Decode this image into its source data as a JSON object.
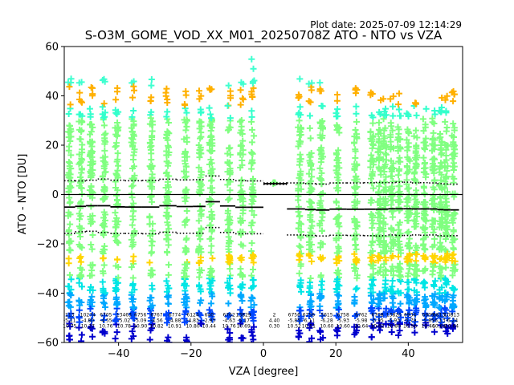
{
  "header": {
    "plot_date": "Plot date: 2025-07-09 12:14:29",
    "title": "S-O3M_GOME_VOD_XX_M01_20250708Z ATO - NTO vs VZA"
  },
  "chart_data": {
    "type": "scatter",
    "title": "S-O3M_GOME_VOD_XX_M01_20250708Z ATO - NTO vs VZA",
    "xlabel": "VZA [degree]",
    "ylabel": "ATO - NTO [DU]",
    "xlim": [
      -55,
      55
    ],
    "ylim": [
      -60,
      60
    ],
    "xticks": [
      -40,
      -20,
      0,
      20,
      40
    ],
    "yticks": [
      -60,
      -40,
      -20,
      0,
      20,
      40,
      60
    ],
    "grid": false,
    "zero_line": 0,
    "point_columns": {
      "x": [
        -53.5,
        -50.5,
        -47.5,
        -44,
        -40.5,
        -36,
        -31,
        -26.5,
        -21.5,
        -17.5,
        -14.5,
        -9.5,
        -6,
        -3,
        3,
        10,
        13,
        16,
        20.5,
        25.5,
        30,
        32,
        33.5,
        35.5,
        37.5,
        40,
        42,
        44.5,
        47,
        49,
        50.5,
        52.5
      ],
      "band_top": [
        33,
        33,
        32,
        33,
        33,
        33,
        33,
        33,
        32,
        31,
        31,
        32,
        32,
        42,
        5,
        33,
        32,
        32,
        30,
        30,
        28,
        26,
        27,
        26,
        27,
        25,
        25,
        22,
        23,
        26,
        26,
        28
      ],
      "band_bottom": [
        -50,
        -50,
        -49,
        -48,
        -49,
        -49,
        -50,
        -50,
        -50,
        -44,
        -42,
        -50,
        -50,
        -52,
        4,
        -50,
        -50,
        -49,
        -48,
        -49,
        -48,
        -47,
        -47,
        -47,
        -48,
        -47,
        -47,
        -47,
        -46,
        -47,
        -47,
        -48
      ]
    },
    "series": [
      {
        "name": "mean",
        "x": [
          -53.5,
          -50.5,
          -47.5,
          -44,
          -40.5,
          -36,
          -31,
          -26.5,
          -21.5,
          -17.5,
          -14.5,
          -9.5,
          -6,
          -3,
          3,
          10,
          13,
          16,
          20.5,
          25.5,
          30,
          32,
          33.5,
          35.5,
          37.5,
          40,
          42,
          44.5,
          47,
          49,
          50.5,
          52.5
        ],
        "values": [
          -5.11,
          -4.8,
          -4.55,
          -4.55,
          -5.02,
          -5.09,
          -5.09,
          -4.56,
          -4.88,
          -4.83,
          -2.93,
          -4.63,
          -5.17,
          -5.17,
          4.4,
          -5.85,
          -6.11,
          -6.28,
          -5.93,
          -5.98,
          -5.95,
          -5.95,
          -5.93,
          -5.79,
          -5.79,
          -5.79,
          -5.85,
          -5.85,
          -5.85,
          -6.13,
          -6.24,
          -6.24
        ]
      },
      {
        "name": "mean + std",
        "x": [
          -53.5,
          -50.5,
          -47.5,
          -44,
          -40.5,
          -36,
          -31,
          -26.5,
          -21.5,
          -17.5,
          -14.5,
          -9.5,
          -6,
          -3,
          3,
          10,
          13,
          16,
          20.5,
          25.5,
          30,
          32,
          33.5,
          35.5,
          37.5,
          40,
          42,
          44.5,
          47,
          49,
          50.5,
          52.5
        ],
        "values": [
          5.6,
          5.5,
          5.8,
          6.3,
          5.8,
          5.6,
          5.7,
          6.2,
          5.9,
          6.0,
          7.5,
          6.1,
          5.6,
          5.5,
          4.7,
          4.7,
          4.4,
          4.2,
          4.7,
          4.7,
          4.8,
          4.9,
          4.8,
          4.8,
          5.0,
          5.0,
          4.7,
          4.8,
          4.7,
          4.4,
          4.3,
          4.2
        ]
      },
      {
        "name": "mean - std",
        "x": [
          -53.5,
          -50.5,
          -47.5,
          -44,
          -40.5,
          -36,
          -31,
          -26.5,
          -21.5,
          -17.5,
          -14.5,
          -9.5,
          -6,
          -3,
          3,
          10,
          13,
          16,
          20.5,
          25.5,
          30,
          32,
          33.5,
          35.5,
          37.5,
          40,
          42,
          44.5,
          47,
          49,
          50.5,
          52.5
        ],
        "values": [
          -15.8,
          -15.1,
          -14.9,
          -15.4,
          -15.8,
          -15.8,
          -15.9,
          -15.3,
          -15.7,
          -15.7,
          -13.4,
          -15.4,
          -15.9,
          -15.9,
          4.1,
          -16.4,
          -16.6,
          -16.8,
          -16.5,
          -16.6,
          -16.7,
          -16.8,
          -16.7,
          -16.4,
          -16.6,
          -16.6,
          -16.4,
          -16.5,
          -16.4,
          -16.7,
          -16.8,
          -16.7
        ]
      }
    ],
    "stat_labels": [
      {
        "x": -53.5,
        "lines": [
          "113",
          "-5.11",
          "10.75"
        ]
      },
      {
        "x": -48.5,
        "lines": [
          "10274",
          "-4.80",
          "10.27"
        ]
      },
      {
        "x": -43.5,
        "lines": [
          "6705",
          "-4.55",
          "10.76"
        ]
      },
      {
        "x": -38.5,
        "lines": [
          "13463",
          "-5.02",
          "10.78"
        ]
      },
      {
        "x": -34,
        "lines": [
          "6756",
          "-5.09",
          "10.90"
        ]
      },
      {
        "x": -29.5,
        "lines": [
          "6767",
          "-4.56",
          "10.82"
        ]
      },
      {
        "x": -24.5,
        "lines": [
          "6774",
          "-4.88",
          "10.91"
        ]
      },
      {
        "x": -19.5,
        "lines": [
          "6124",
          "-4.83",
          "10.80"
        ]
      },
      {
        "x": -15,
        "lines": [
          "640",
          "-2.93",
          "10.44"
        ]
      },
      {
        "x": -9.5,
        "lines": [
          "6762",
          "-4.63",
          "10.76"
        ]
      },
      {
        "x": -5.5,
        "lines": [
          "13829",
          "-5.17",
          "10.69"
        ]
      },
      {
        "x": 3,
        "lines": [
          "2",
          "4.40",
          "0.30"
        ]
      },
      {
        "x": 8.5,
        "lines": [
          "6756",
          "-5.85",
          "10.52"
        ]
      },
      {
        "x": 12.5,
        "lines": [
          "6756",
          "-6.11",
          "10.51"
        ]
      },
      {
        "x": 17.5,
        "lines": [
          "5615",
          "-6.28",
          "10.60"
        ]
      },
      {
        "x": 22,
        "lines": [
          "6758",
          "-5.93",
          "10.60"
        ]
      },
      {
        "x": 27,
        "lines": [
          "6762",
          "-5.98",
          "10.64"
        ]
      },
      {
        "x": 31.5,
        "lines": [
          "6708",
          "-5.95",
          "10.62"
        ]
      },
      {
        "x": 36,
        "lines": [
          "13820",
          "-5.93",
          "10.80"
        ]
      },
      {
        "x": 40.5,
        "lines": [
          "6934",
          "-5.79",
          "10.56"
        ]
      },
      {
        "x": 45.5,
        "lines": [
          "6909",
          "-5.85",
          "10.46"
        ]
      },
      {
        "x": 48.5,
        "lines": [
          "6813",
          "-6.13",
          "10.64"
        ]
      },
      {
        "x": 52,
        "lines": [
          "10813",
          "-6.24",
          "10.64"
        ]
      }
    ]
  }
}
